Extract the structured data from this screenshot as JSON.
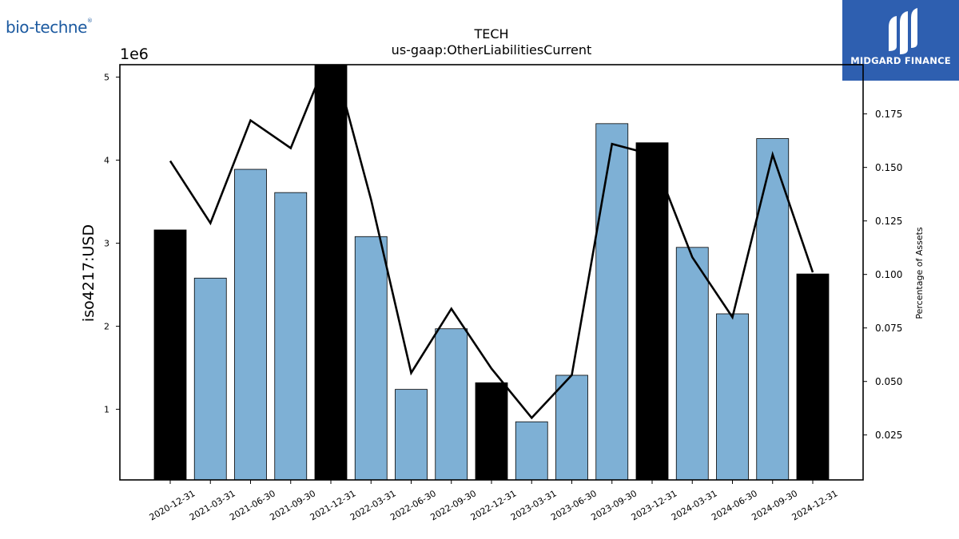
{
  "branding": {
    "left_logo_text": "bio-techne",
    "left_logo_mark": "®",
    "right_logo_text": "MIDGARD FINANCE",
    "right_logo_icon": "midgard-finance-logo-icon"
  },
  "colors": {
    "bar_default": "#7eb0d5",
    "bar_highlight": "#000000",
    "line": "#000000",
    "brand_blue": "#2e5fb0"
  },
  "chart_data": {
    "type": "bar",
    "title": "TECH",
    "subtitle": "us-gaap:OtherLiabilitiesCurrent",
    "ylabel": "iso4217:USD",
    "y_offset_label": "1e6",
    "y2label": "Percentage of Assets",
    "ylim": [
      150000,
      5150000
    ],
    "y2lim": [
      0.004,
      0.198
    ],
    "yticks": [
      1,
      2,
      3,
      4,
      5
    ],
    "y2ticks": [
      "0.025",
      "0.050",
      "0.075",
      "0.100",
      "0.125",
      "0.150",
      "0.175"
    ],
    "y2tick_values": [
      0.025,
      0.05,
      0.075,
      0.1,
      0.125,
      0.15,
      0.175
    ],
    "grid": false,
    "categories": [
      "2020-12-31",
      "2021-03-31",
      "2021-06-30",
      "2021-09-30",
      "2021-12-31",
      "2022-03-31",
      "2022-06-30",
      "2022-09-30",
      "2022-12-31",
      "2023-03-31",
      "2023-06-30",
      "2023-09-30",
      "2023-12-31",
      "2024-03-31",
      "2024-06-30",
      "2024-09-30",
      "2024-12-31"
    ],
    "series": [
      {
        "type": "bar",
        "values": [
          3160000,
          2580000,
          3890000,
          3610000,
          5200000,
          3080000,
          1240000,
          1970000,
          1320000,
          850000,
          1410000,
          4440000,
          4210000,
          2950000,
          2150000,
          4260000,
          2630000
        ],
        "highlight": [
          true,
          false,
          false,
          false,
          true,
          false,
          false,
          false,
          true,
          false,
          false,
          false,
          true,
          false,
          false,
          false,
          true
        ]
      },
      {
        "type": "line",
        "axis": "right",
        "values": [
          0.153,
          0.124,
          0.172,
          0.159,
          0.205,
          0.135,
          0.054,
          0.084,
          0.056,
          0.033,
          0.053,
          0.161,
          0.156,
          0.108,
          0.08,
          0.156,
          0.101
        ]
      }
    ]
  }
}
